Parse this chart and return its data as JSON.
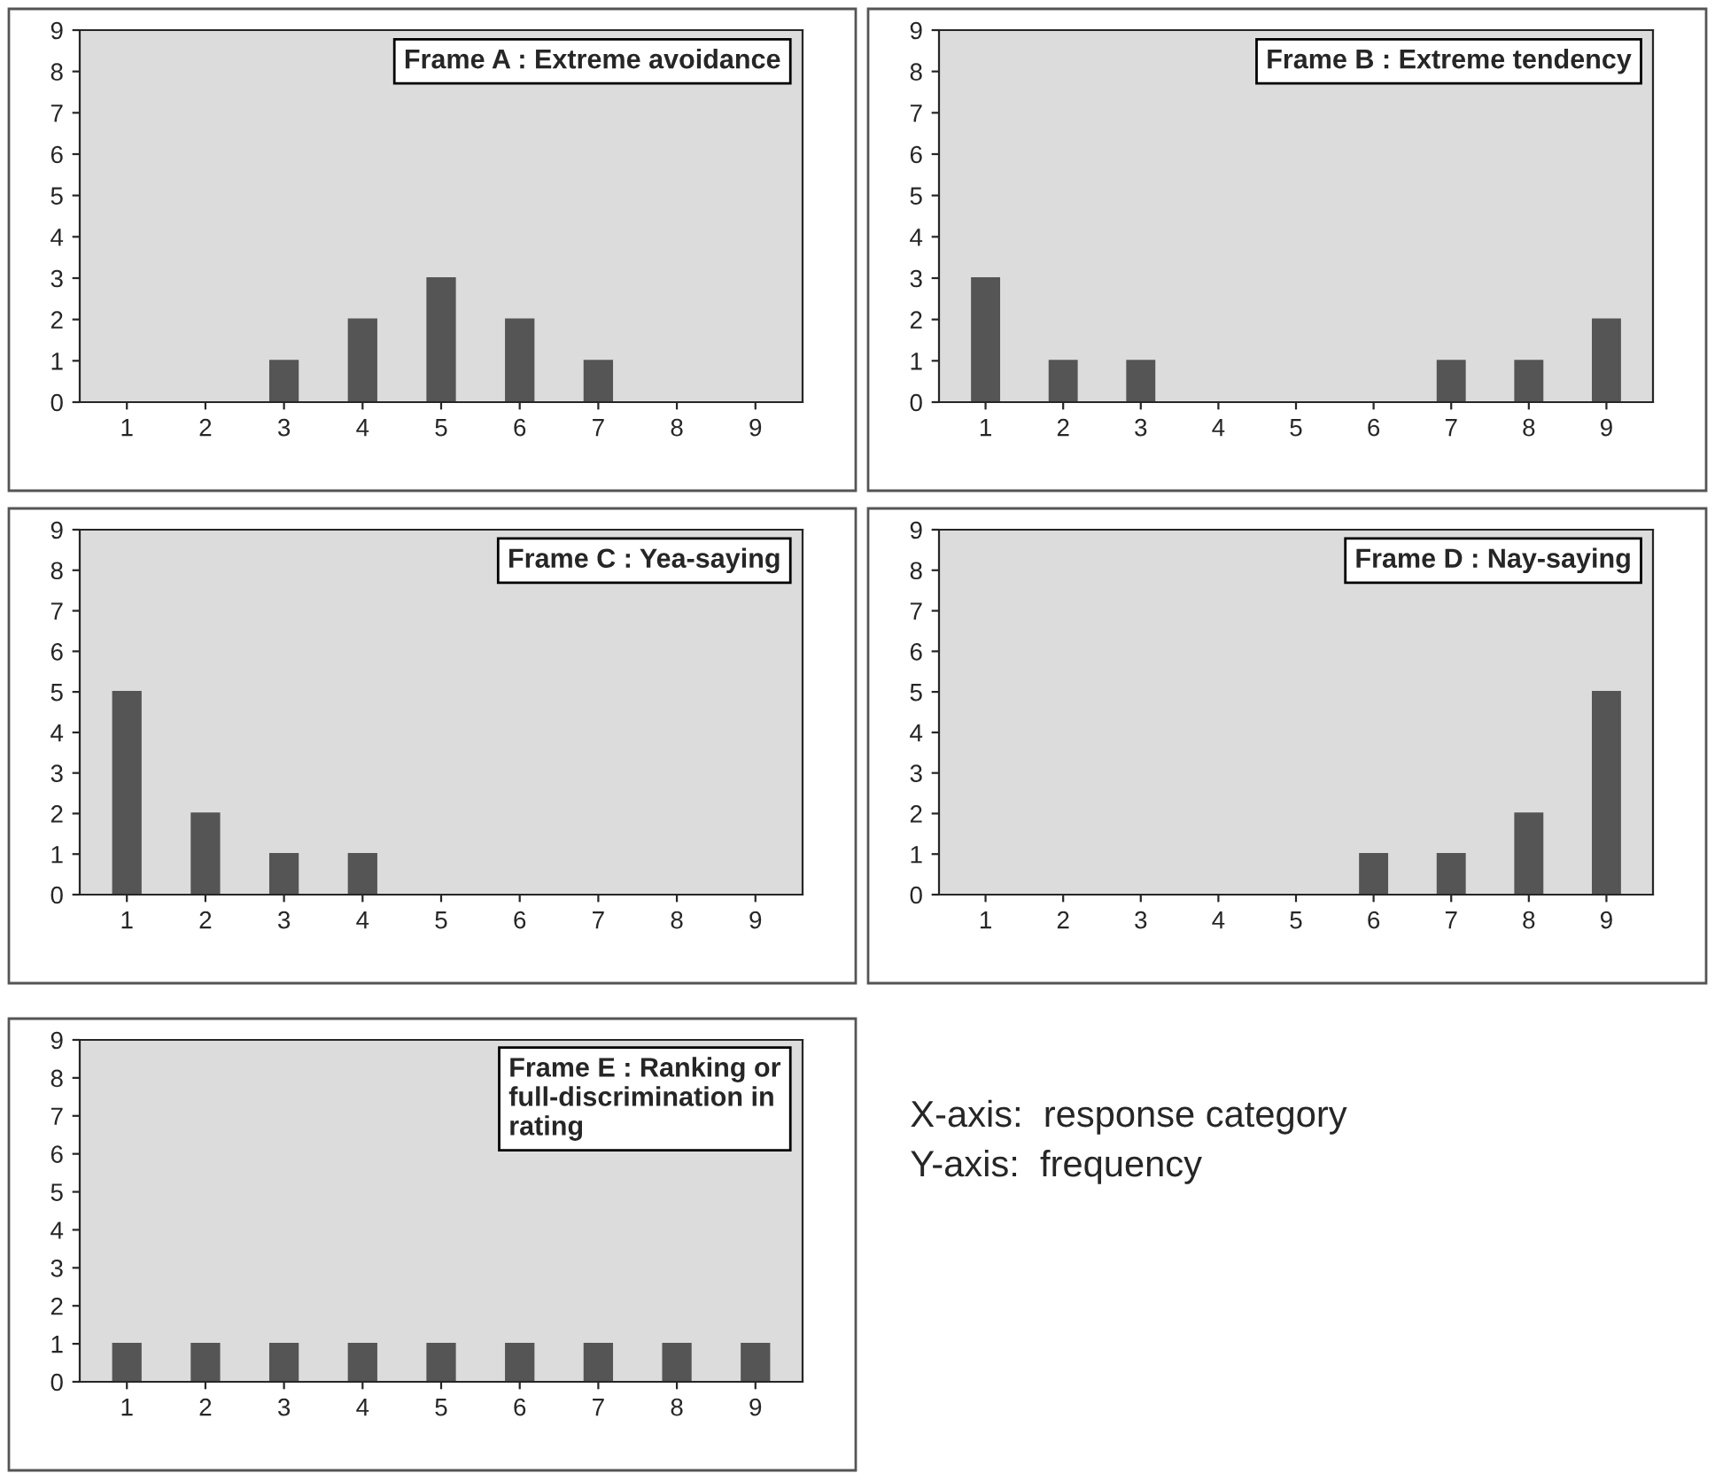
{
  "chart_data": [
    {
      "type": "bar",
      "title": "Frame A : Extreme avoidance",
      "categories": [
        "1",
        "2",
        "3",
        "4",
        "5",
        "6",
        "7",
        "8",
        "9"
      ],
      "values": [
        0,
        0,
        1,
        2,
        3,
        2,
        1,
        0,
        0
      ],
      "color": "#555555",
      "ylim": [
        0,
        9
      ],
      "yticks": [
        0,
        1,
        2,
        3,
        4,
        5,
        6,
        7,
        8,
        9
      ],
      "grid": false
    },
    {
      "type": "bar",
      "title": "Frame B : Extreme tendency",
      "categories": [
        "1",
        "2",
        "3",
        "4",
        "5",
        "6",
        "7",
        "8",
        "9"
      ],
      "values": [
        3,
        1,
        1,
        0,
        0,
        0,
        1,
        1,
        2
      ],
      "color": "#555555",
      "ylim": [
        0,
        9
      ],
      "yticks": [
        0,
        1,
        2,
        3,
        4,
        5,
        6,
        7,
        8,
        9
      ],
      "grid": false
    },
    {
      "type": "bar",
      "title": "Frame C : Yea-saying",
      "categories": [
        "1",
        "2",
        "3",
        "4",
        "5",
        "6",
        "7",
        "8",
        "9"
      ],
      "values": [
        5,
        2,
        1,
        1,
        0,
        0,
        0,
        0,
        0
      ],
      "color": "#555555",
      "ylim": [
        0,
        9
      ],
      "yticks": [
        0,
        1,
        2,
        3,
        4,
        5,
        6,
        7,
        8,
        9
      ],
      "grid": false
    },
    {
      "type": "bar",
      "title": "Frame D : Nay-saying",
      "categories": [
        "1",
        "2",
        "3",
        "4",
        "5",
        "6",
        "7",
        "8",
        "9"
      ],
      "values": [
        0,
        0,
        0,
        0,
        0,
        1,
        1,
        2,
        5
      ],
      "color": "#555555",
      "ylim": [
        0,
        9
      ],
      "yticks": [
        0,
        1,
        2,
        3,
        4,
        5,
        6,
        7,
        8,
        9
      ],
      "grid": false
    },
    {
      "type": "bar",
      "title": "Frame E : Ranking or\nfull-discrimination in\nrating",
      "categories": [
        "1",
        "2",
        "3",
        "4",
        "5",
        "6",
        "7",
        "8",
        "9"
      ],
      "values": [
        1,
        1,
        1,
        1,
        1,
        1,
        1,
        1,
        1
      ],
      "color": "#555555",
      "ylim": [
        0,
        9
      ],
      "yticks": [
        0,
        1,
        2,
        3,
        4,
        5,
        6,
        7,
        8,
        9
      ],
      "grid": false
    },
    {
      "type": "other",
      "annotations": [
        "X-axis:  response category",
        "Y-axis:  frequency"
      ]
    }
  ]
}
